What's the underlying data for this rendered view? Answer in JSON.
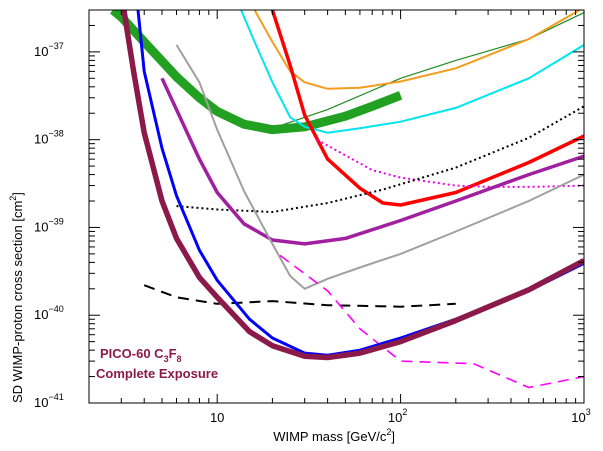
{
  "chart_data": {
    "type": "line",
    "xlabel": "WIMP mass [GeV/c",
    "xlabel_sup": "2",
    "xlabel_end": "]",
    "ylabel": "SD WIMP-proton cross section [cm",
    "ylabel_sup": "2",
    "ylabel_end": "]",
    "xscale": "log",
    "yscale": "log",
    "xlim": [
      2.0,
      1000
    ],
    "ylim": [
      1e-41,
      3e-37
    ],
    "x_ticks": [
      {
        "value": 10,
        "label": "10"
      },
      {
        "value": 100,
        "label": "10",
        "sup": "2"
      },
      {
        "value": 1000,
        "label": "10",
        "sup": "3"
      }
    ],
    "y_ticks": [
      {
        "value": 1e-41,
        "label": "10",
        "sup": "−41"
      },
      {
        "value": 1e-40,
        "label": "10",
        "sup": "−40"
      },
      {
        "value": 1e-39,
        "label": "10",
        "sup": "−39"
      },
      {
        "value": 1e-38,
        "label": "10",
        "sup": "−38"
      },
      {
        "value": 1e-37,
        "label": "10",
        "sup": "−37"
      }
    ],
    "annotation": {
      "line1_a": "PICO-60 C",
      "line1_sub1": "3",
      "line1_b": "F",
      "line1_sub2": "8",
      "line2": "Complete Exposure",
      "color": "#8b1a4a"
    },
    "series": [
      {
        "color": "#228b22",
        "width": 1.2,
        "dash": "",
        "points": [
          [
            19,
            1.3e-38
          ],
          [
            40,
            2.2e-38
          ],
          [
            100,
            5e-38
          ],
          [
            200,
            8e-38
          ],
          [
            500,
            1.4e-37
          ],
          [
            1000,
            2.8e-37
          ]
        ]
      },
      {
        "color": "#22a022",
        "width": 9,
        "dash": "",
        "points": [
          [
            2.7,
            3e-37
          ],
          [
            3,
            2.5e-37
          ],
          [
            4,
            1.3e-37
          ],
          [
            6,
            5.2e-38
          ],
          [
            8,
            3e-38
          ],
          [
            10,
            2.1e-38
          ],
          [
            14,
            1.5e-38
          ],
          [
            20,
            1.3e-38
          ],
          [
            30,
            1.4e-38
          ],
          [
            50,
            1.85e-38
          ],
          [
            70,
            2.4e-38
          ],
          [
            100,
            3.2e-38
          ]
        ]
      },
      {
        "color": "#f39c1e",
        "width": 2,
        "dash": "",
        "points": [
          [
            16,
            3e-37
          ],
          [
            20,
            1.3e-37
          ],
          [
            25,
            6e-38
          ],
          [
            30,
            4.5e-38
          ],
          [
            40,
            3.8e-38
          ],
          [
            60,
            3.9e-38
          ],
          [
            100,
            4.6e-38
          ],
          [
            200,
            6.5e-38
          ],
          [
            500,
            1.4e-37
          ],
          [
            1000,
            3.2e-37
          ]
        ]
      },
      {
        "color": "#00e6f0",
        "width": 2,
        "dash": "",
        "points": [
          [
            13.5,
            3e-37
          ],
          [
            16,
            1.3e-37
          ],
          [
            20,
            4.5e-38
          ],
          [
            25,
            1.8e-38
          ],
          [
            30,
            1.4e-38
          ],
          [
            40,
            1.2e-38
          ],
          [
            60,
            1.35e-38
          ],
          [
            100,
            1.6e-38
          ],
          [
            200,
            2.3e-38
          ],
          [
            500,
            5e-38
          ],
          [
            1000,
            1.2e-37
          ]
        ]
      },
      {
        "color": "#ff0000",
        "width": 3.5,
        "dash": "",
        "points": [
          [
            20,
            3e-37
          ],
          [
            25,
            7e-38
          ],
          [
            30,
            1.9e-38
          ],
          [
            40,
            6e-39
          ],
          [
            60,
            2.8e-39
          ],
          [
            80,
            1.9e-39
          ],
          [
            100,
            1.8e-39
          ],
          [
            200,
            2.5e-39
          ],
          [
            500,
            5.5e-39
          ],
          [
            1000,
            1.1e-38
          ]
        ]
      },
      {
        "color": "#ee00ee",
        "width": 2,
        "dash": "2,3",
        "points": [
          [
            35,
            1e-38
          ],
          [
            70,
            4.5e-39
          ],
          [
            100,
            3.7e-39
          ],
          [
            200,
            3e-39
          ],
          [
            300,
            2.9e-39
          ],
          [
            500,
            2.9e-39
          ],
          [
            1000,
            3e-39
          ]
        ]
      },
      {
        "color": "#000000",
        "width": 2,
        "dash": "2,3",
        "points": [
          [
            6,
            1.75e-39
          ],
          [
            10,
            1.6e-39
          ],
          [
            20,
            1.5e-39
          ],
          [
            40,
            1.9e-39
          ],
          [
            80,
            2.7e-39
          ],
          [
            200,
            4.8e-39
          ],
          [
            500,
            1.05e-38
          ],
          [
            1000,
            2.4e-38
          ]
        ]
      },
      {
        "color": "#a020a0",
        "width": 3.5,
        "dash": "",
        "points": [
          [
            5,
            5e-38
          ],
          [
            6,
            2.2e-38
          ],
          [
            8,
            6e-39
          ],
          [
            10,
            2.5e-39
          ],
          [
            14,
            1.1e-39
          ],
          [
            20,
            7.2e-40
          ],
          [
            30,
            6.5e-40
          ],
          [
            50,
            7.5e-40
          ],
          [
            100,
            1.2e-39
          ],
          [
            200,
            2e-39
          ],
          [
            500,
            4e-39
          ],
          [
            1000,
            6.5e-39
          ]
        ]
      },
      {
        "color": "#a0a0a0",
        "width": 2,
        "dash": "",
        "points": [
          [
            6,
            1.2e-37
          ],
          [
            8,
            4.5e-38
          ],
          [
            10,
            1.3e-38
          ],
          [
            14,
            2.6e-39
          ],
          [
            20,
            6.5e-40
          ],
          [
            25,
            2.8e-40
          ],
          [
            30,
            2e-40
          ],
          [
            40,
            2.6e-40
          ],
          [
            60,
            3.5e-40
          ],
          [
            100,
            5e-40
          ],
          [
            200,
            9e-40
          ],
          [
            500,
            2e-39
          ],
          [
            1000,
            4e-39
          ]
        ]
      },
      {
        "color": "#000000",
        "width": 2,
        "dash": "11,7",
        "points": [
          [
            4,
            2.2e-40
          ],
          [
            6,
            1.6e-40
          ],
          [
            10,
            1.35e-40
          ],
          [
            20,
            1.45e-40
          ],
          [
            40,
            1.3e-40
          ],
          [
            100,
            1.25e-40
          ],
          [
            200,
            1.35e-40
          ]
        ]
      },
      {
        "color": "#ff00ff",
        "width": 1.6,
        "dash": "11,7",
        "points": [
          [
            22,
            4.8e-40
          ],
          [
            40,
            1.9e-40
          ],
          [
            60,
            7e-41
          ],
          [
            100,
            3e-41
          ],
          [
            250,
            2.8e-41
          ],
          [
            500,
            1.5e-41
          ],
          [
            1000,
            2e-41
          ]
        ]
      },
      {
        "color": "#0000ff",
        "width": 3,
        "dash": "",
        "points": [
          [
            3.7,
            3e-37
          ],
          [
            4,
            6e-38
          ],
          [
            5,
            8e-39
          ],
          [
            6,
            2.3e-39
          ],
          [
            8,
            5.5e-40
          ],
          [
            10,
            2.5e-40
          ],
          [
            15,
            9e-41
          ],
          [
            20,
            5.5e-41
          ],
          [
            30,
            3.7e-41
          ],
          [
            40,
            3.5e-41
          ],
          [
            60,
            4e-41
          ],
          [
            100,
            5.5e-41
          ],
          [
            200,
            9e-41
          ],
          [
            500,
            1.9e-40
          ],
          [
            1000,
            3.9e-40
          ]
        ]
      },
      {
        "color": "#8b1a4a",
        "width": 5.5,
        "dash": "",
        "points": [
          [
            3.1,
            3e-37
          ],
          [
            3.5,
            6e-38
          ],
          [
            4,
            1.2e-38
          ],
          [
            5,
            2e-39
          ],
          [
            6,
            7.5e-40
          ],
          [
            8,
            2.7e-40
          ],
          [
            10,
            1.6e-40
          ],
          [
            15,
            6.5e-41
          ],
          [
            20,
            4.5e-41
          ],
          [
            30,
            3.4e-41
          ],
          [
            40,
            3.3e-41
          ],
          [
            60,
            3.7e-41
          ],
          [
            100,
            5e-41
          ],
          [
            200,
            8.7e-41
          ],
          [
            500,
            1.95e-40
          ],
          [
            1000,
            4.2e-40
          ]
        ]
      }
    ]
  }
}
